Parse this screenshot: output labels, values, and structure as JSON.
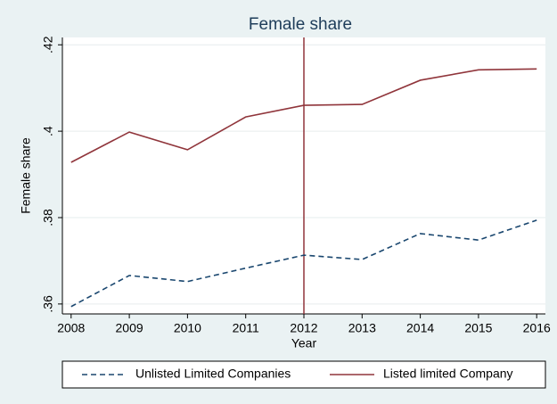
{
  "chart_data": {
    "type": "line",
    "title": "Female share",
    "x_label": "Year",
    "y_label": "Female share",
    "x": [
      2008,
      2009,
      2010,
      2011,
      2012,
      2013,
      2014,
      2015,
      2016
    ],
    "series": [
      {
        "name": "Unlisted Limited Companies",
        "color": "#1a476f",
        "dash": true,
        "values": [
          0.3594,
          0.3666,
          0.3652,
          0.3683,
          0.3713,
          0.3703,
          0.3763,
          0.3748,
          0.3794
        ]
      },
      {
        "name": "Listed limited Company",
        "color": "#90353b",
        "dash": false,
        "values": [
          0.3928,
          0.3998,
          0.3957,
          0.4033,
          0.406,
          0.4062,
          0.4118,
          0.4142,
          0.4144
        ]
      }
    ],
    "xlim": [
      2007.85,
      2016.15
    ],
    "ylim": [
      0.3577,
      0.4217
    ],
    "xticks": [
      2008,
      2009,
      2010,
      2011,
      2012,
      2013,
      2014,
      2015,
      2016
    ],
    "yticks": [
      {
        "value": 0.36,
        "label": ".36"
      },
      {
        "value": 0.38,
        "label": ".38"
      },
      {
        "value": 0.4,
        "label": ".4"
      },
      {
        "value": 0.42,
        "label": ".42"
      }
    ],
    "vline": 2012,
    "vline_color": "#90353b",
    "grid": true,
    "legend": "bottom"
  }
}
